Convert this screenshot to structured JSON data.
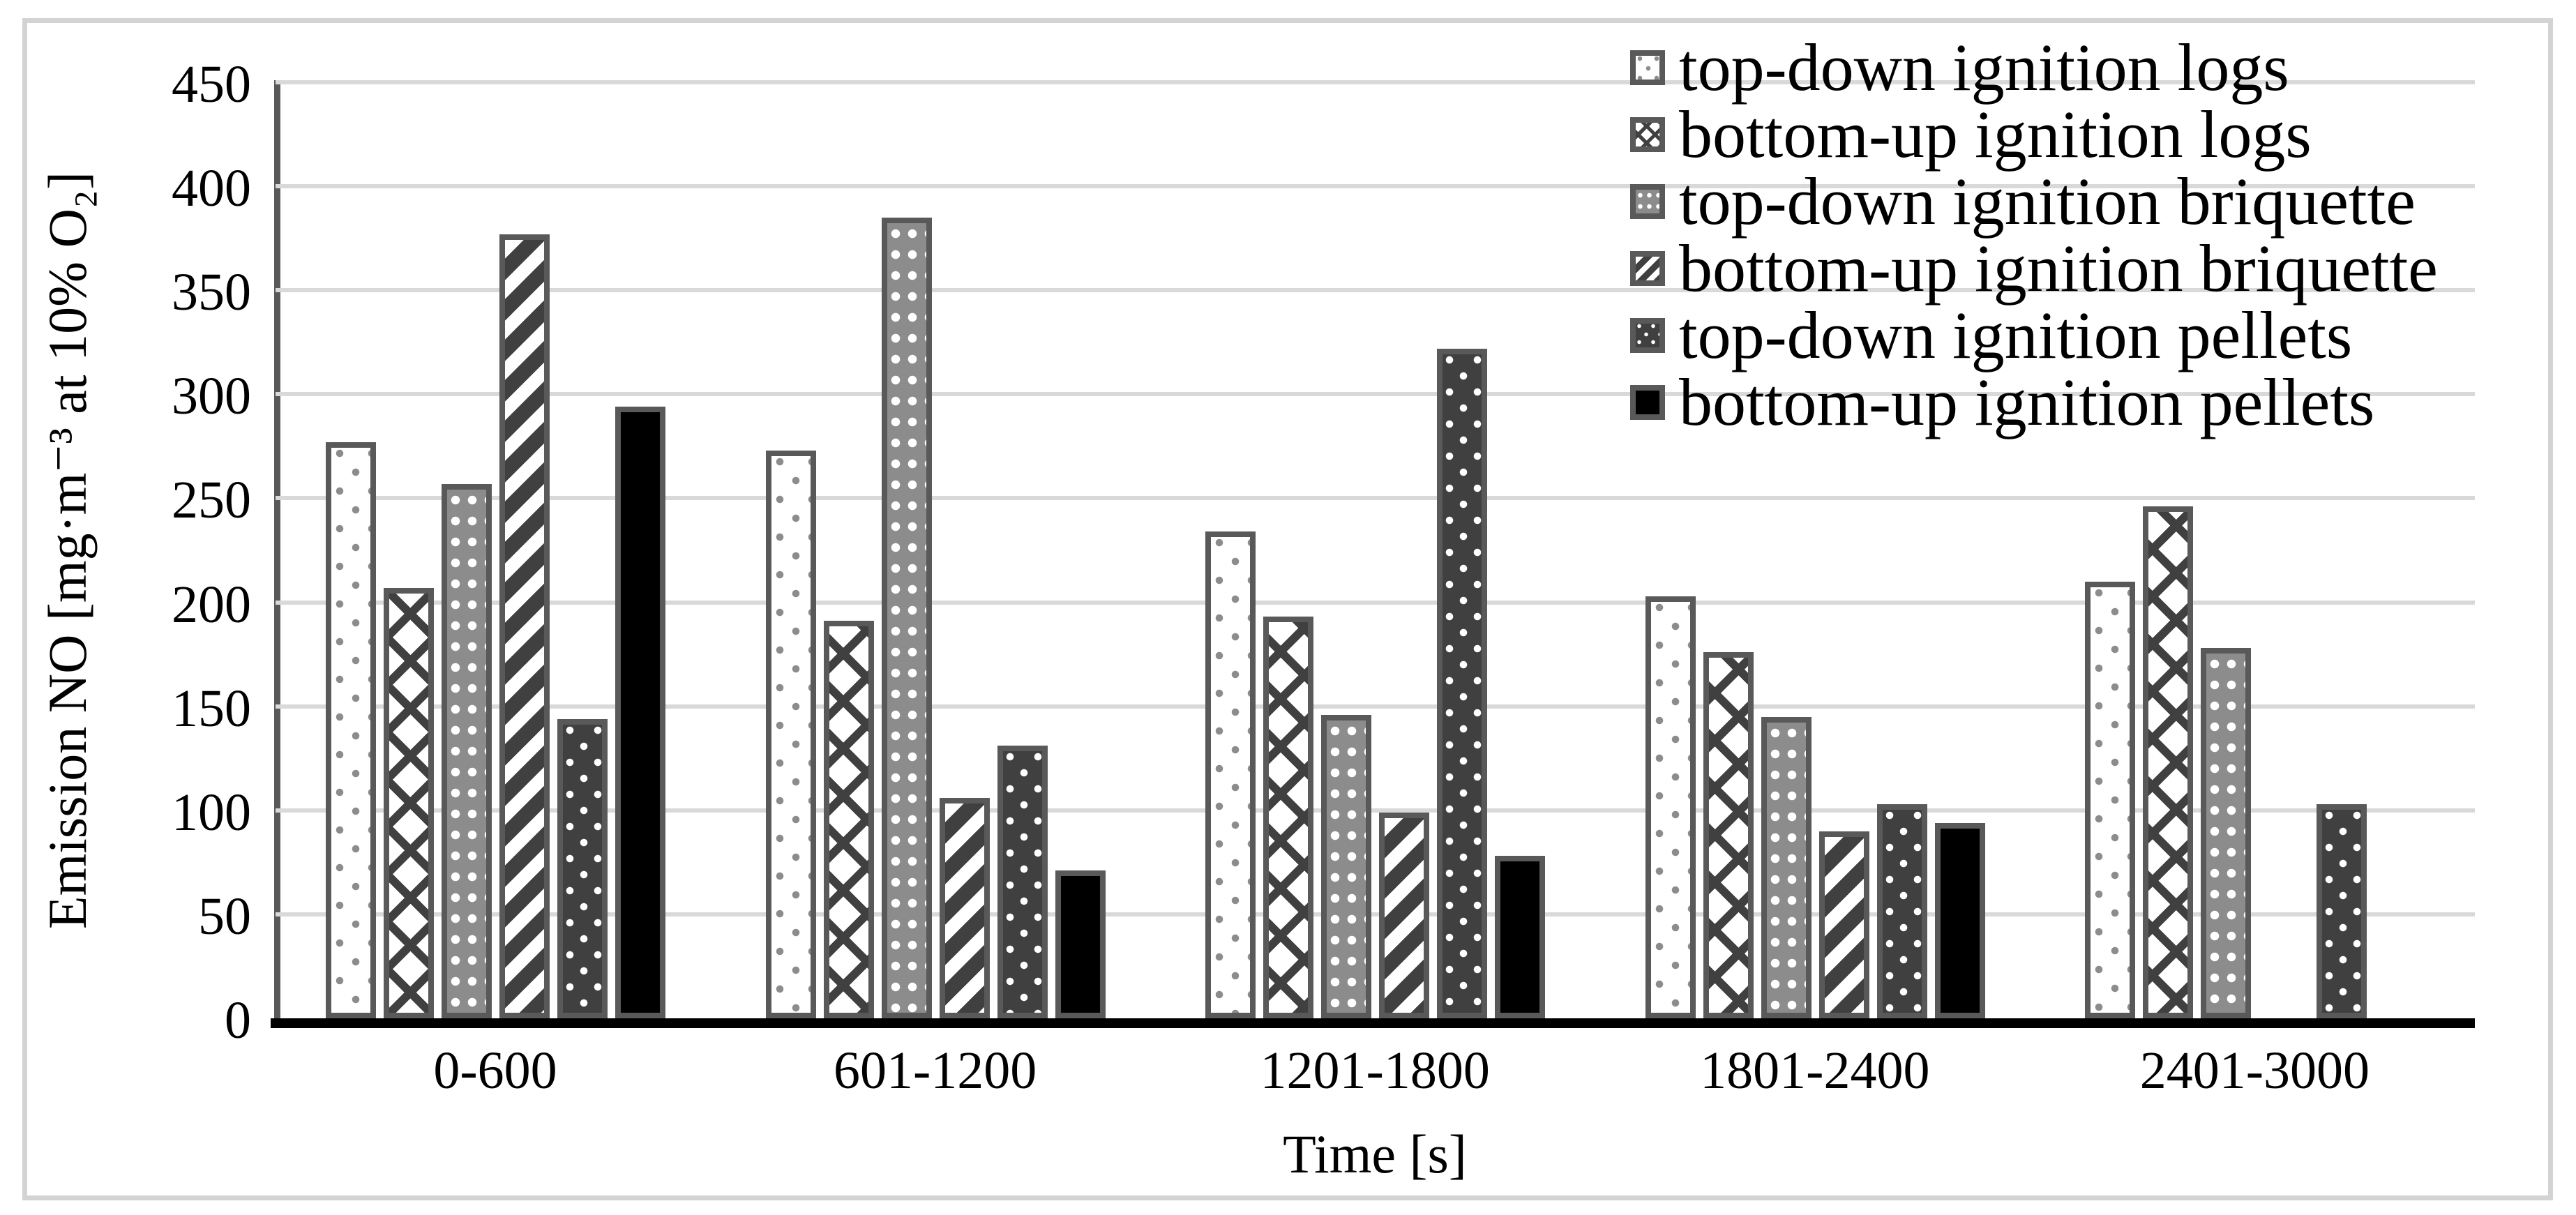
{
  "chart_data": {
    "type": "bar",
    "title": "",
    "xlabel": "Time [s]",
    "ylabel": "Emission NO [mg·m⁻³ at 10% O₂]",
    "ylim": [
      0,
      450
    ],
    "ytick_step": 50,
    "yticks": [
      0,
      50,
      100,
      150,
      200,
      250,
      300,
      350,
      400,
      450
    ],
    "grid": "horizontal",
    "legend_position": "top-right",
    "categories": [
      "0-600",
      "601-1200",
      "1201-1800",
      "1801-2400",
      "2401-3000"
    ],
    "series": [
      {
        "name": "top-down ignition logs",
        "pattern": "sparse-gray-dots-on-white",
        "values": [
          277,
          273,
          234,
          203,
          210
        ]
      },
      {
        "name": "bottom-up ignition logs",
        "pattern": "diagonal-diamond-lattice",
        "values": [
          207,
          191,
          193,
          176,
          246
        ]
      },
      {
        "name": "top-down ignition briquette",
        "pattern": "white-dot-grid-on-gray",
        "values": [
          257,
          385,
          146,
          145,
          178
        ]
      },
      {
        "name": "bottom-up ignition briquette",
        "pattern": "bold-diagonal-stripes",
        "values": [
          377,
          106,
          99,
          90,
          null
        ]
      },
      {
        "name": "top-down ignition pellets",
        "pattern": "white-dots-on-dark-gray",
        "values": [
          144,
          131,
          322,
          103,
          103
        ]
      },
      {
        "name": "bottom-up ignition pellets",
        "pattern": "solid-black",
        "values": [
          294,
          71,
          78,
          94,
          null
        ]
      }
    ],
    "colors": {
      "bar_border": "#595959",
      "pattern_dark": "#404040",
      "pattern_gray": "#8c8c8c",
      "gridline": "#d9d9d9",
      "x_axis_line": "#000000",
      "y_axis_line": "#595959",
      "figure_frame": "#d3d3d3",
      "text": "#000000",
      "background": "#ffffff"
    }
  }
}
